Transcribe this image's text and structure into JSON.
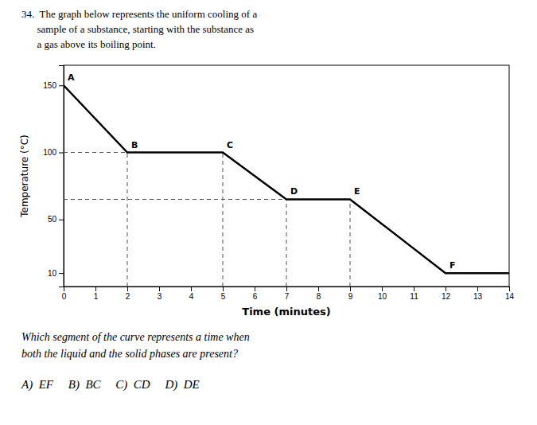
{
  "chart_data": {
    "type": "line",
    "title": [
      "34.  The graph below represents the uniform cooling of a",
      "      sample of a substance, starting with the substance as",
      "      a gas above its boiling point."
    ],
    "xlabel": "Time (minutes)",
    "ylabel": "Temperature (°C)",
    "x": [
      0,
      2,
      5,
      7,
      9,
      12,
      14
    ],
    "values": [
      150,
      100,
      100,
      65,
      65,
      10,
      10
    ],
    "color": "#000000",
    "point_labels": [
      {
        "text": "A",
        "x": 0,
        "y": 150
      },
      {
        "text": "B",
        "x": 2,
        "y": 100
      },
      {
        "text": "C",
        "x": 5,
        "y": 100
      },
      {
        "text": "D",
        "x": 7,
        "y": 65
      },
      {
        "text": "E",
        "x": 9,
        "y": 65
      },
      {
        "text": "F",
        "x": 12,
        "y": 10
      }
    ],
    "h_lines": [
      {
        "y": 100,
        "x0": 0,
        "x1": 5
      },
      {
        "y": 65,
        "x0": 0,
        "x1": 9
      }
    ],
    "v_lines": [
      {
        "x": 2,
        "y0": 0,
        "y1": 100
      },
      {
        "x": 5,
        "y0": 0,
        "y1": 100
      },
      {
        "x": 7,
        "y0": 0,
        "y1": 65
      },
      {
        "x": 9,
        "y0": 0,
        "y1": 65
      }
    ],
    "annotations": [
      "Which segment of the curve represents a time when",
      "both the liquid and the solid phases are present?",
      "A)  EF     B)  BC     C)  CD     D)  DE"
    ],
    "xlim": [
      0,
      14
    ],
    "ylim": [
      0,
      165
    ],
    "xticks": [
      0,
      1,
      2,
      3,
      4,
      5,
      6,
      7,
      8,
      9,
      10,
      11,
      12,
      13,
      14
    ],
    "yticks": [
      10,
      50,
      100,
      150
    ],
    "grid": false
  }
}
